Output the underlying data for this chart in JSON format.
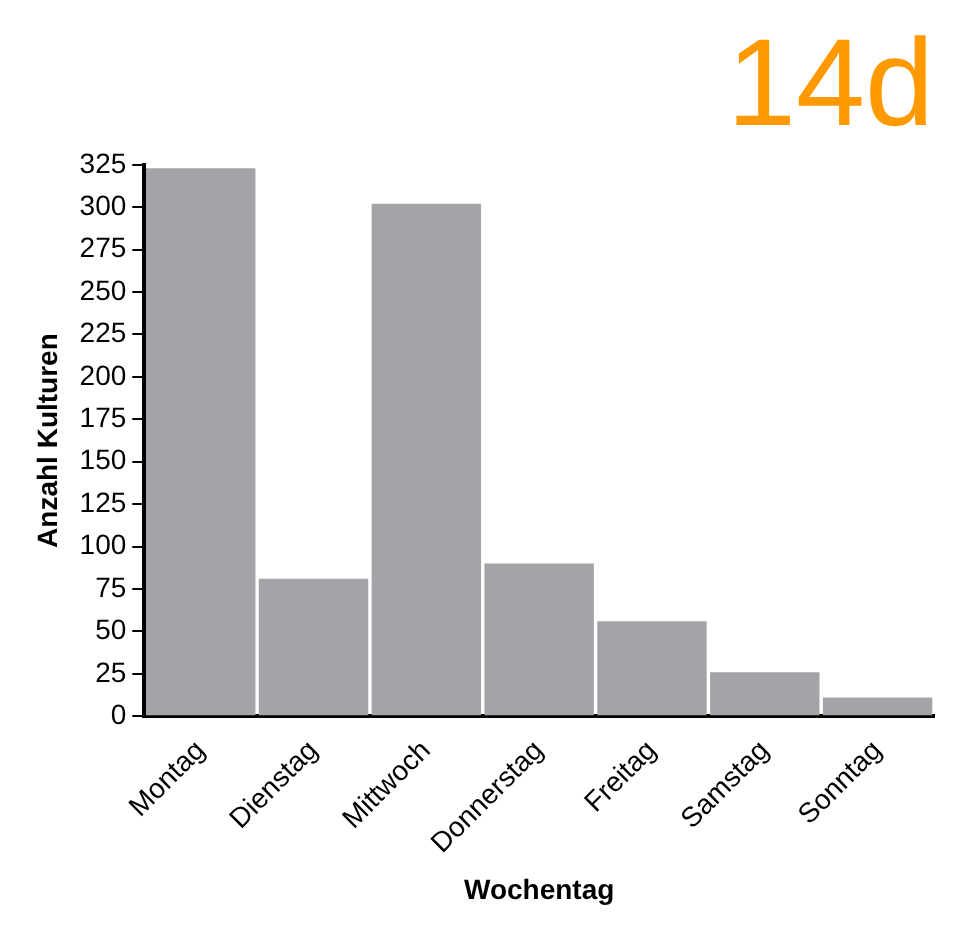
{
  "chart_data": {
    "type": "bar",
    "title": "14d",
    "xlabel": "Wochentag",
    "ylabel": "Anzahl Kulturen",
    "categories": [
      "Montag",
      "Dienstag",
      "Mittwoch",
      "Donnerstag",
      "Freitag",
      "Samstag",
      "Sonntag"
    ],
    "values": [
      323,
      81,
      302,
      90,
      56,
      26,
      11
    ],
    "color": "#a4a3a8",
    "ylim": [
      0,
      325
    ],
    "yticks": [
      0,
      25,
      50,
      75,
      100,
      125,
      150,
      175,
      200,
      225,
      250,
      275,
      300,
      325
    ],
    "grid": false,
    "legend": false
  }
}
